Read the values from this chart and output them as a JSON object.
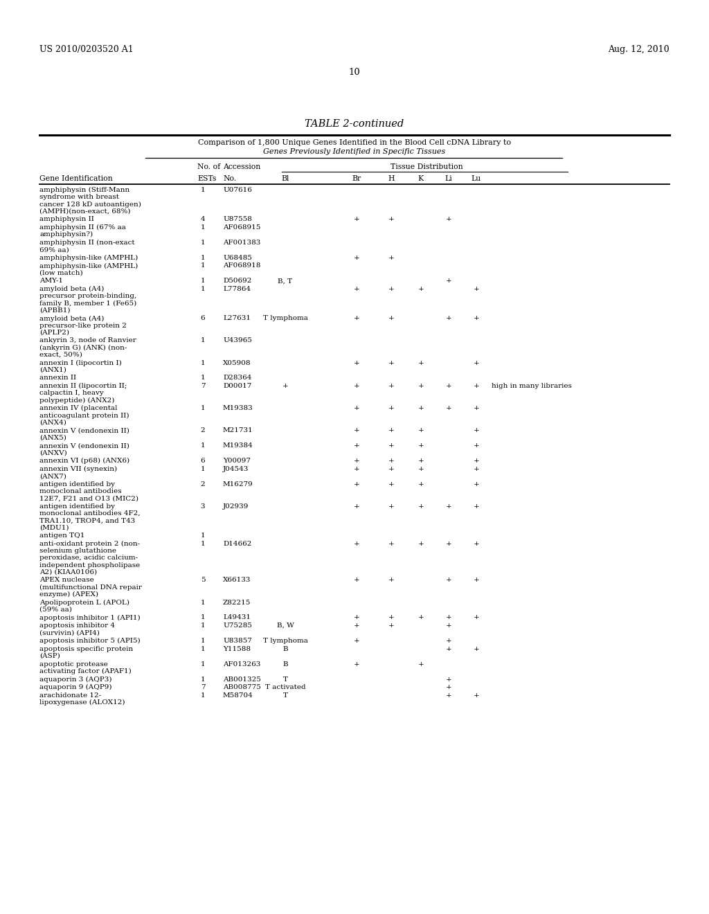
{
  "patent_number": "US 2010/0203520 A1",
  "patent_date": "Aug. 12, 2010",
  "page_number": "10",
  "table_title": "TABLE 2-continued",
  "table_subtitle1": "Comparison of 1,800 Unique Genes Identified in the Blood Cell cDNA Library to",
  "table_subtitle2": "Genes Previously Identified in Specific Tissues",
  "rows": [
    [
      "amphiphysin (Stiff-Mann\nsyndrome with breast\ncancer 128 kD autoantigen)\n(AMPH)(non-exact, 68%)",
      "1",
      "U07616",
      "",
      "",
      "",
      "",
      "",
      ""
    ],
    [
      "amphiphysin II",
      "4",
      "U87558",
      "",
      "+",
      "+",
      "",
      "+",
      ""
    ],
    [
      "amphiphysin II (67% aa\namphiphysin?)",
      "1",
      "AF068915",
      "",
      "",
      "",
      "",
      "",
      ""
    ],
    [
      "amphiphysin II (non-exact\n69% aa)",
      "1",
      "AF001383",
      "",
      "",
      "",
      "",
      "",
      ""
    ],
    [
      "amphiphysin-like (AMPHL)",
      "1",
      "U68485",
      "",
      "+",
      "+",
      "",
      "",
      ""
    ],
    [
      "amphiphysin-like (AMPHL)\n(low match)",
      "1",
      "AF068918",
      "",
      "",
      "",
      "",
      "",
      ""
    ],
    [
      "AMY-1",
      "1",
      "D50692",
      "B, T",
      "",
      "",
      "",
      "+",
      ""
    ],
    [
      "amyloid beta (A4)\nprecursor protein-binding,\nfamily B, member 1 (Fe65)\n(APBB1)",
      "1",
      "L77864",
      "",
      "+",
      "+",
      "+",
      "",
      "+"
    ],
    [
      "amyloid beta (A4)\nprecursor-like protein 2\n(APLP2)",
      "6",
      "L27631",
      "T lymphoma",
      "+",
      "+",
      "",
      "+",
      "+"
    ],
    [
      "ankyrin 3, node of Ranvier\n(ankyrin G) (ANK) (non-\nexact, 50%)",
      "1",
      "U43965",
      "",
      "",
      "",
      "",
      "",
      ""
    ],
    [
      "annexin I (lipocortin I)\n(ANX1)",
      "1",
      "X05908",
      "",
      "+",
      "+",
      "+",
      "",
      "+"
    ],
    [
      "annexin II",
      "1",
      "D28364",
      "",
      "",
      "",
      "",
      "",
      ""
    ],
    [
      "annexin II (lipocortin II;\ncalpactin I, heavy\npolypeptide) (ANX2)",
      "7",
      "D00017",
      "+",
      "+",
      "+",
      "+",
      "+",
      "+  high in many libraries"
    ],
    [
      "annexin IV (placental\nanticoagulant protein II)\n(ANX4)",
      "1",
      "M19383",
      "",
      "+",
      "+",
      "+",
      "+",
      "+"
    ],
    [
      "annexin V (endonexin II)\n(ANX5)",
      "2",
      "M21731",
      "",
      "+",
      "+",
      "+",
      "",
      "+"
    ],
    [
      "annexin V (endonexin II)\n(ANXV)",
      "1",
      "M19384",
      "",
      "+",
      "+",
      "+",
      "",
      "+"
    ],
    [
      "annexin VI (p68) (ANX6)",
      "6",
      "Y00097",
      "",
      "+",
      "+",
      "+",
      "",
      "+"
    ],
    [
      "annexin VII (synexin)\n(ANX7)",
      "1",
      "J04543",
      "",
      "+",
      "+",
      "+",
      "",
      "+"
    ],
    [
      "antigen identified by\nmonoclonal antibodies\n12E7, F21 and O13 (MIC2)",
      "2",
      "M16279",
      "",
      "+",
      "+",
      "+",
      "",
      "+"
    ],
    [
      "antigen identified by\nmonoclonal antibodies 4F2,\nTRA1.10, TROP4, and T43\n(MDU1)",
      "3",
      "J02939",
      "",
      "+",
      "+",
      "+",
      "+",
      "+"
    ],
    [
      "antigen TQ1",
      "1",
      "",
      "",
      "",
      "",
      "",
      "",
      ""
    ],
    [
      "anti-oxidant protein 2 (non-\nselenium glutathione\nperoxidase, acidic calcium-\nindependent phospholipase\nA2) (KIAA0106)",
      "1",
      "D14662",
      "",
      "+",
      "+",
      "+",
      "+",
      "+"
    ],
    [
      "APEX nuclease\n(multifunctional DNA repair\nenzyme) (APEX)",
      "5",
      "X66133",
      "",
      "+",
      "+",
      "",
      "+",
      "+"
    ],
    [
      "Apolipoprotein L (APOL)\n(59% aa)",
      "1",
      "Z82215",
      "",
      "",
      "",
      "",
      "",
      ""
    ],
    [
      "apoptosis inhibitor 1 (API1)",
      "1",
      "L49431",
      "",
      "+",
      "+",
      "+",
      "+",
      "+"
    ],
    [
      "apoptosis inhibitor 4\n(survivin) (API4)",
      "1",
      "U75285",
      "B, W",
      "+",
      "+",
      "",
      "+",
      ""
    ],
    [
      "apoptosis inhibitor 5 (API5)",
      "1",
      "U83857",
      "T lymphoma",
      "+",
      "",
      "",
      "+",
      ""
    ],
    [
      "apoptosis specific protein\n(ASP)",
      "1",
      "Y11588",
      "B",
      "",
      "",
      "",
      "+",
      "+"
    ],
    [
      "apoptotic protease\nactivating factor (APAF1)",
      "1",
      "AF013263",
      "B",
      "+",
      "",
      "+",
      "",
      ""
    ],
    [
      "aquaporin 3 (AQP3)",
      "1",
      "AB001325",
      "T",
      "",
      "",
      "",
      "+",
      ""
    ],
    [
      "aquaporin 9 (AQP9)",
      "7",
      "AB008775",
      "T activated",
      "",
      "",
      "",
      "+",
      ""
    ],
    [
      "arachidonate 12-\nlipoxygenase (ALOX12)",
      "1",
      "M58704",
      "T",
      "",
      "",
      "",
      "+",
      "+"
    ]
  ]
}
